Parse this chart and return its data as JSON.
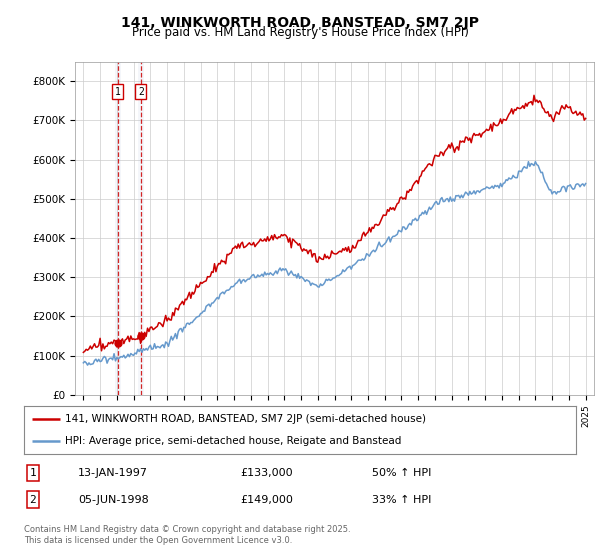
{
  "title": "141, WINKWORTH ROAD, BANSTEAD, SM7 2JP",
  "subtitle": "Price paid vs. HM Land Registry's House Price Index (HPI)",
  "legend_line1": "141, WINKWORTH ROAD, BANSTEAD, SM7 2JP (semi-detached house)",
  "legend_line2": "HPI: Average price, semi-detached house, Reigate and Banstead",
  "transaction1_label": "1",
  "transaction1_date": "13-JAN-1997",
  "transaction1_price": "£133,000",
  "transaction1_hpi": "50% ↑ HPI",
  "transaction2_label": "2",
  "transaction2_date": "05-JUN-1998",
  "transaction2_price": "£149,000",
  "transaction2_hpi": "33% ↑ HPI",
  "footer": "Contains HM Land Registry data © Crown copyright and database right 2025.\nThis data is licensed under the Open Government Licence v3.0.",
  "ylim": [
    0,
    850000
  ],
  "yticks": [
    0,
    100000,
    200000,
    300000,
    400000,
    500000,
    600000,
    700000,
    800000
  ],
  "ytick_labels": [
    "£0",
    "£100K",
    "£200K",
    "£300K",
    "£400K",
    "£500K",
    "£600K",
    "£700K",
    "£800K"
  ],
  "red_color": "#cc0000",
  "blue_color": "#6699cc",
  "vline1_x": 1997.04,
  "vline2_x": 1998.43,
  "marker1_y": 133000,
  "marker2_y": 149000,
  "xlim_left": 1994.5,
  "xlim_right": 2025.5,
  "plot_bg": "#ffffff",
  "grid_color": "#cccccc"
}
